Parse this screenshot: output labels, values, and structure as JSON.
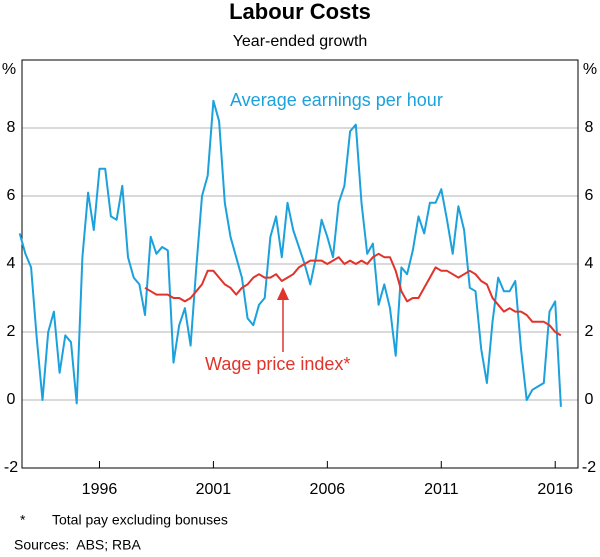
{
  "chart_data": {
    "type": "line",
    "title": "Labour Costs",
    "subtitle": "Year-ended growth",
    "y_unit": "%",
    "xlim": [
      1992.6,
      2017
    ],
    "xticks": [
      1996,
      2001,
      2006,
      2011,
      2016
    ],
    "ylim": [
      -2,
      10
    ],
    "yticks": [
      -2,
      0,
      2,
      4,
      6,
      8
    ],
    "grid": true,
    "series": [
      {
        "name": "Average earnings per hour",
        "color": "#1ba1dc",
        "x": [
          1992.5,
          1992.75,
          1993,
          1993.25,
          1993.5,
          1993.75,
          1994,
          1994.25,
          1994.5,
          1994.75,
          1995,
          1995.25,
          1995.5,
          1995.75,
          1996,
          1996.25,
          1996.5,
          1996.75,
          1997,
          1997.25,
          1997.5,
          1997.75,
          1998,
          1998.25,
          1998.5,
          1998.75,
          1999,
          1999.25,
          1999.5,
          1999.75,
          2000,
          2000.25,
          2000.5,
          2000.75,
          2001,
          2001.25,
          2001.5,
          2001.75,
          2002,
          2002.25,
          2002.5,
          2002.75,
          2003,
          2003.25,
          2003.5,
          2003.75,
          2004,
          2004.25,
          2004.5,
          2004.75,
          2005,
          2005.25,
          2005.5,
          2005.75,
          2006,
          2006.25,
          2006.5,
          2006.75,
          2007,
          2007.25,
          2007.5,
          2007.75,
          2008,
          2008.25,
          2008.5,
          2008.75,
          2009,
          2009.25,
          2009.5,
          2009.75,
          2010,
          2010.25,
          2010.5,
          2010.75,
          2011,
          2011.25,
          2011.5,
          2011.75,
          2012,
          2012.25,
          2012.5,
          2012.75,
          2013,
          2013.25,
          2013.5,
          2013.75,
          2014,
          2014.25,
          2014.5,
          2014.75,
          2015,
          2015.25,
          2015.5,
          2015.75,
          2016,
          2016.25
        ],
        "values": [
          4.9,
          4.3,
          3.9,
          1.8,
          0.0,
          2.0,
          2.6,
          0.8,
          1.9,
          1.7,
          -0.1,
          4.2,
          6.1,
          5.0,
          6.8,
          6.8,
          5.4,
          5.3,
          6.3,
          4.2,
          3.6,
          3.4,
          2.5,
          4.8,
          4.3,
          4.5,
          4.4,
          1.1,
          2.2,
          2.7,
          1.6,
          3.9,
          6.0,
          6.6,
          8.8,
          8.2,
          5.8,
          4.8,
          4.2,
          3.6,
          2.4,
          2.2,
          2.8,
          3.0,
          4.8,
          5.4,
          4.2,
          5.8,
          5.0,
          4.5,
          4.0,
          3.4,
          4.2,
          5.3,
          4.8,
          4.2,
          5.8,
          6.3,
          7.9,
          8.1,
          5.8,
          4.3,
          4.6,
          2.8,
          3.4,
          2.7,
          1.3,
          3.9,
          3.7,
          4.4,
          5.4,
          4.9,
          5.8,
          5.8,
          6.2,
          5.3,
          4.3,
          5.7,
          5.0,
          3.3,
          3.2,
          1.5,
          0.5,
          2.3,
          3.6,
          3.2,
          3.2,
          3.5,
          1.5,
          0.0,
          0.3,
          0.4,
          0.5,
          2.6,
          2.9,
          -0.2
        ]
      },
      {
        "name": "Wage price index*",
        "color": "#e0342b",
        "x": [
          1998,
          1998.25,
          1998.5,
          1998.75,
          1999,
          1999.25,
          1999.5,
          1999.75,
          2000,
          2000.25,
          2000.5,
          2000.75,
          2001,
          2001.25,
          2001.5,
          2001.75,
          2002,
          2002.25,
          2002.5,
          2002.75,
          2003,
          2003.25,
          2003.5,
          2003.75,
          2004,
          2004.25,
          2004.5,
          2004.75,
          2005,
          2005.25,
          2005.5,
          2005.75,
          2006,
          2006.25,
          2006.5,
          2006.75,
          2007,
          2007.25,
          2007.5,
          2007.75,
          2008,
          2008.25,
          2008.5,
          2008.75,
          2009,
          2009.25,
          2009.5,
          2009.75,
          2010,
          2010.25,
          2010.5,
          2010.75,
          2011,
          2011.25,
          2011.5,
          2011.75,
          2012,
          2012.25,
          2012.5,
          2012.75,
          2013,
          2013.25,
          2013.5,
          2013.75,
          2014,
          2014.25,
          2014.5,
          2014.75,
          2015,
          2015.25,
          2015.5,
          2015.75,
          2016,
          2016.25
        ],
        "values": [
          3.3,
          3.2,
          3.1,
          3.1,
          3.1,
          3.0,
          3.0,
          2.9,
          3.0,
          3.2,
          3.4,
          3.8,
          3.8,
          3.6,
          3.4,
          3.3,
          3.1,
          3.3,
          3.4,
          3.6,
          3.7,
          3.6,
          3.6,
          3.7,
          3.5,
          3.6,
          3.7,
          3.9,
          4.0,
          4.1,
          4.1,
          4.1,
          4.0,
          4.1,
          4.2,
          4.0,
          4.1,
          4.0,
          4.1,
          4.0,
          4.2,
          4.3,
          4.2,
          4.2,
          3.8,
          3.2,
          2.9,
          3.0,
          3.0,
          3.3,
          3.6,
          3.9,
          3.8,
          3.8,
          3.7,
          3.6,
          3.7,
          3.8,
          3.7,
          3.5,
          3.4,
          3.0,
          2.8,
          2.6,
          2.7,
          2.6,
          2.6,
          2.5,
          2.3,
          2.3,
          2.3,
          2.2,
          2.0,
          1.9
        ]
      }
    ],
    "footnote_marker": "*",
    "footnote": "Total pay excluding bonuses",
    "source": "Sources:  ABS; RBA"
  }
}
